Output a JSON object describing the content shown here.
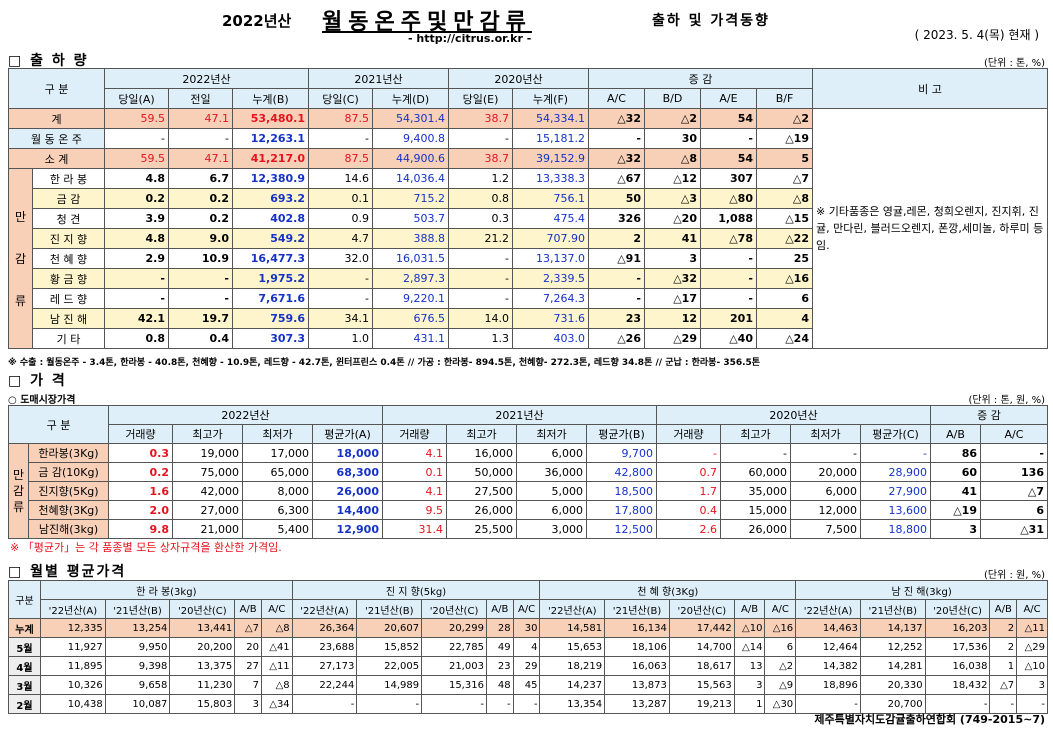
{
  "header": {
    "year_prefix": "2022년산",
    "main_title": "월동온주및만감류",
    "sub_title": "출하 및 가격동향",
    "url": "- http://citrus.or.kr -",
    "date": "( 2023.  5.  4(목) 현재 )"
  },
  "shipment": {
    "section_title": "□ 출 하 량",
    "unit": "(단위 : 톤, %)",
    "h_gubun": "구    분",
    "h_2022": "2022년산",
    "h_2021": "2021년산",
    "h_2020": "2020년산",
    "h_change": "증    감",
    "h_note": "비 고",
    "sub": [
      "당일(A)",
      "전일",
      "누계(B)",
      "당일(C)",
      "누계(D)",
      "당일(E)",
      "누계(F)",
      "A/C",
      "B/D",
      "A/E",
      "B/F"
    ],
    "rows": [
      {
        "name": "계",
        "v": [
          "59.5",
          "47.1",
          "53,480.1",
          "87.5",
          "54,301.4",
          "38.7",
          "54,334.1",
          "△32",
          "△2",
          "54",
          "△2"
        ]
      },
      {
        "name": "월 동 온 주",
        "v": [
          "-",
          "-",
          "12,263.1",
          "-",
          "9,400.8",
          "-",
          "15,181.2",
          "-",
          "30",
          "-",
          "△19"
        ]
      },
      {
        "name": "소    계",
        "v": [
          "59.5",
          "47.1",
          "41,217.0",
          "87.5",
          "44,900.6",
          "38.7",
          "39,152.9",
          "△32",
          "△8",
          "54",
          "5"
        ]
      }
    ],
    "group_label": [
      "만",
      "감",
      "류"
    ],
    "mrows": [
      {
        "name": "한 라 봉",
        "v": [
          "4.8",
          "6.7",
          "12,380.9",
          "14.6",
          "14,036.4",
          "1.2",
          "13,338.3",
          "△67",
          "△12",
          "307",
          "△7"
        ]
      },
      {
        "name": "금    감",
        "v": [
          "0.2",
          "0.2",
          "693.2",
          "0.1",
          "715.2",
          "0.8",
          "756.1",
          "50",
          "△3",
          "△80",
          "△8"
        ]
      },
      {
        "name": "청    견",
        "v": [
          "3.9",
          "0.2",
          "402.8",
          "0.9",
          "503.7",
          "0.3",
          "475.4",
          "326",
          "△20",
          "1,088",
          "△15"
        ]
      },
      {
        "name": "진 지 향",
        "v": [
          "4.8",
          "9.0",
          "549.2",
          "4.7",
          "388.8",
          "21.2",
          "707.90",
          "2",
          "41",
          "△78",
          "△22"
        ]
      },
      {
        "name": "천 혜 향",
        "v": [
          "2.9",
          "10.9",
          "16,477.3",
          "32.0",
          "16,031.5",
          "-",
          "13,137.0",
          "△91",
          "3",
          "-",
          "25"
        ]
      },
      {
        "name": "황 금 향",
        "v": [
          "-",
          "-",
          "1,975.2",
          "-",
          "2,897.3",
          "-",
          "2,339.5",
          "-",
          "△32",
          "-",
          "△16"
        ]
      },
      {
        "name": "레 드 향",
        "v": [
          "-",
          "-",
          "7,671.6",
          "-",
          "9,220.1",
          "-",
          "7,264.3",
          "-",
          "△17",
          "-",
          "6"
        ]
      },
      {
        "name": "남 진 해",
        "v": [
          "42.1",
          "19.7",
          "759.6",
          "34.1",
          "676.5",
          "14.0",
          "731.6",
          "23",
          "12",
          "201",
          "4"
        ]
      },
      {
        "name": "기    타",
        "v": [
          "0.8",
          "0.4",
          "307.3",
          "1.0",
          "431.1",
          "1.3",
          "403.0",
          "△26",
          "△29",
          "△40",
          "△24"
        ]
      }
    ],
    "note_text": "※ 기타품종은 영귤,레몬, 청희오렌지, 진지휘, 진귤, 만다린, 블러드오렌지, 폰깡,세미놀, 하루미 등 임.",
    "footnote": "※ 수출 : 월동온주 - 3.4톤, 한라봉 - 40.8톤, 천혜향 - 10.9톤, 레드향 - 42.7톤, 윈터프린스 0.4톤  //  가공 :  한라봉- 894.5톤, 천혜향- 272.3톤, 레드향 34.8톤  //  군납 : 한라봉- 356.5톤"
  },
  "price": {
    "section_title": "□ 가      격",
    "subsection": "○ 도매시장가격",
    "unit": "(단위 : 톤, 원, %)",
    "h_gubun": "구    분",
    "h_2022": "2022년산",
    "h_2021": "2021년산",
    "h_2020": "2020년산",
    "h_change": "증    감",
    "sub": [
      "거래량",
      "최고가",
      "최저가",
      "평균가(A)",
      "거래량",
      "최고가",
      "최저가",
      "평균가(B)",
      "거래량",
      "최고가",
      "최저가",
      "평균가(C)",
      "A/B",
      "A/C"
    ],
    "group_label": [
      "만",
      "감",
      "류"
    ],
    "rows": [
      {
        "name": "한라봉(3Kg)",
        "v": [
          "0.3",
          "19,000",
          "17,000",
          "18,000",
          "4.1",
          "16,000",
          "6,000",
          "9,700",
          "-",
          "-",
          "-",
          "-",
          "86",
          "-"
        ]
      },
      {
        "name": "금 감(10Kg)",
        "v": [
          "0.2",
          "75,000",
          "65,000",
          "68,300",
          "0.1",
          "50,000",
          "36,000",
          "42,800",
          "0.7",
          "60,000",
          "20,000",
          "28,900",
          "60",
          "136"
        ]
      },
      {
        "name": "진지향(5Kg)",
        "v": [
          "1.6",
          "42,000",
          "8,000",
          "26,000",
          "4.1",
          "27,500",
          "5,000",
          "18,500",
          "1.7",
          "35,000",
          "6,000",
          "27,900",
          "41",
          "△7"
        ]
      },
      {
        "name": "천혜향(3Kg)",
        "v": [
          "2.0",
          "27,000",
          "6,300",
          "14,400",
          "9.5",
          "26,000",
          "6,000",
          "17,800",
          "0.4",
          "15,000",
          "12,000",
          "13,600",
          "△19",
          "6"
        ]
      },
      {
        "name": "남진해(3kg)",
        "v": [
          "9.8",
          "21,000",
          "5,400",
          "12,900",
          "31.4",
          "25,500",
          "3,000",
          "12,500",
          "2.6",
          "26,000",
          "7,500",
          "18,800",
          "3",
          "△31"
        ]
      }
    ],
    "footnote": "※ 「평균가」는 각 품종별 모든 상자규격을 환산한 가격임."
  },
  "monthly": {
    "section_title": "□ 월별 평균가격",
    "unit": "(단위 : 원, %)",
    "h_gubun": "구분",
    "groups": [
      "한 라 봉(3kg)",
      "진 지 향(5kg)",
      "천 혜 향(3Kg)",
      "남 진 해(3kg)"
    ],
    "sub": [
      "'22년산(A)",
      "'21년산(B)",
      "'20년산(C)",
      "A/B",
      "A/C"
    ],
    "rows": [
      {
        "name": "누계",
        "v": [
          "12,335",
          "13,254",
          "13,441",
          "△7",
          "△8",
          "26,364",
          "20,607",
          "20,299",
          "28",
          "30",
          "14,581",
          "16,134",
          "17,442",
          "△10",
          "△16",
          "14,463",
          "14,137",
          "16,203",
          "2",
          "△11"
        ]
      },
      {
        "name": "5월",
        "v": [
          "11,927",
          "9,950",
          "20,200",
          "20",
          "△41",
          "23,688",
          "15,852",
          "22,785",
          "49",
          "4",
          "15,653",
          "18,106",
          "14,700",
          "△14",
          "6",
          "12,464",
          "12,252",
          "17,536",
          "2",
          "△29"
        ]
      },
      {
        "name": "4월",
        "v": [
          "11,895",
          "9,398",
          "13,375",
          "27",
          "△11",
          "27,173",
          "22,005",
          "21,003",
          "23",
          "29",
          "18,219",
          "16,063",
          "18,617",
          "13",
          "△2",
          "14,382",
          "14,281",
          "16,038",
          "1",
          "△10"
        ]
      },
      {
        "name": "3월",
        "v": [
          "10,326",
          "9,658",
          "11,230",
          "7",
          "△8",
          "22,244",
          "14,989",
          "15,316",
          "48",
          "45",
          "14,237",
          "13,873",
          "15,563",
          "3",
          "△9",
          "18,896",
          "20,330",
          "18,432",
          "△7",
          "3"
        ]
      },
      {
        "name": "2월",
        "v": [
          "10,438",
          "10,087",
          "15,803",
          "3",
          "△34",
          "-",
          "-",
          "-",
          "-",
          "-",
          "13,354",
          "13,287",
          "19,213",
          "1",
          "△30",
          "-",
          "20,700",
          "-",
          "-",
          "-"
        ]
      }
    ],
    "footer": "제주특별자치도감귤출하연합회 (749-2015~7)"
  }
}
